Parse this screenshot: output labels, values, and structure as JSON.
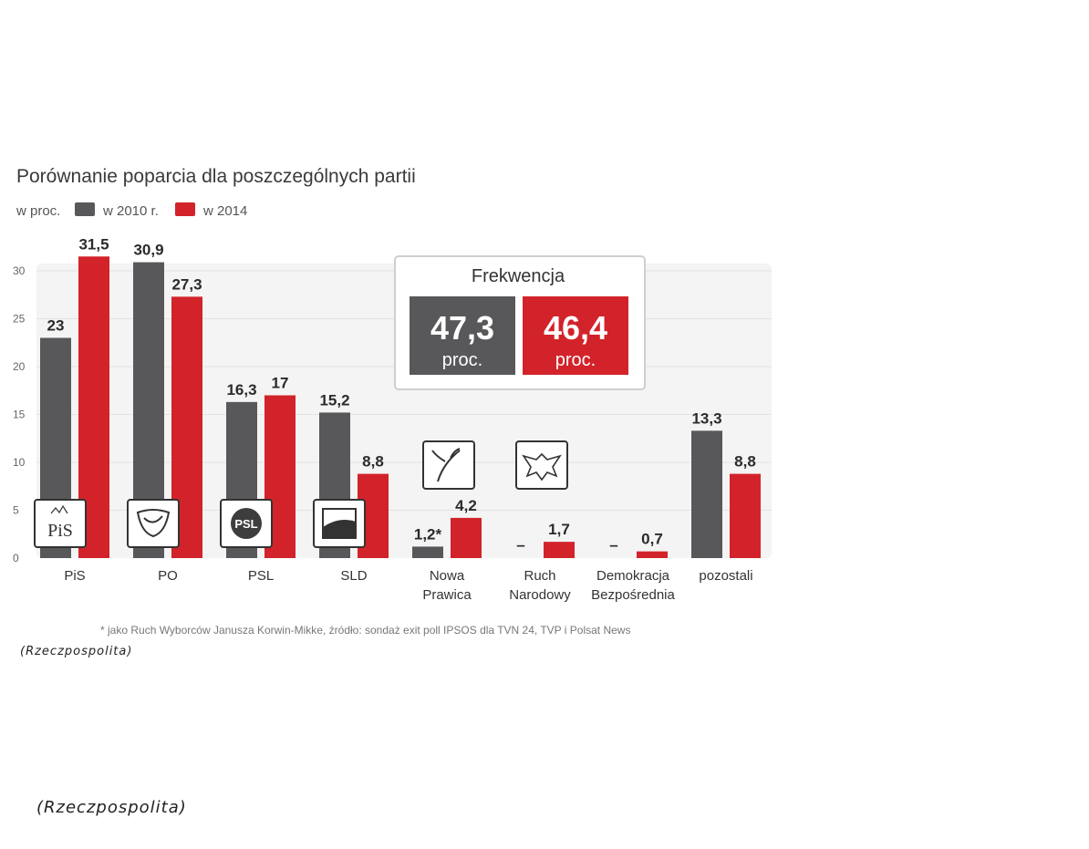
{
  "chart_data": {
    "type": "bar",
    "title": "Porównanie poparcia dla poszczególnych partii",
    "unit_label": "w proc.",
    "categories": [
      [
        "PiS"
      ],
      [
        "PO"
      ],
      [
        "PSL"
      ],
      [
        "SLD"
      ],
      [
        "Nowa",
        "Prawica"
      ],
      [
        "Ruch",
        "Narodowy"
      ],
      [
        "Demokracja",
        "Bezpośrednia"
      ],
      [
        "pozostali"
      ]
    ],
    "series": [
      {
        "name": "w 2010 r.",
        "color": "#58585a",
        "values": [
          23,
          30.9,
          16.3,
          15.2,
          1.2,
          null,
          null,
          13.3
        ],
        "labels": [
          "23",
          "30,9",
          "16,3",
          "15,2",
          "1,2*",
          "–",
          "–",
          "13,3"
        ]
      },
      {
        "name": "w 2014",
        "color": "#d2232a",
        "values": [
          31.5,
          27.3,
          17,
          8.8,
          4.2,
          1.7,
          0.7,
          8.8
        ],
        "labels": [
          "31,5",
          "27,3",
          "17",
          "8,8",
          "4,2",
          "1,7",
          "0,7",
          "8,8"
        ]
      }
    ],
    "ylim": [
      0,
      30
    ],
    "yticks": [
      "0",
      "5",
      "10",
      "15",
      "20",
      "25",
      "30"
    ],
    "grid": true,
    "logos": [
      {
        "party": "PiS",
        "text": "PiS",
        "icon": "pis-logo"
      },
      {
        "party": "PO",
        "text": "",
        "icon": "po-logo"
      },
      {
        "party": "PSL",
        "text": "PSL",
        "icon": "psl-logo"
      },
      {
        "party": "SLD",
        "text": "",
        "icon": "sld-logo"
      },
      {
        "party": "Nowa Prawica",
        "text": "",
        "icon": "nowa-prawica-logo"
      },
      {
        "party": "Ruch Narodowy",
        "text": "",
        "icon": "ruch-narodowy-logo"
      }
    ],
    "turnout": {
      "title": "Frekwencja",
      "items": [
        {
          "value": "47,3",
          "unit": "proc.",
          "color": "#58585a"
        },
        {
          "value": "46,4",
          "unit": "proc.",
          "color": "#d2232a"
        }
      ]
    },
    "footnote": "* jako Ruch Wyborców Janusza Korwin-Mikke, źródło: sondaż exit poll IPSOS dla TVN 24, TVP i Polsat News"
  },
  "source_labels": [
    "(Rzeczpospolita)",
    "(Rzeczpospolita)"
  ]
}
